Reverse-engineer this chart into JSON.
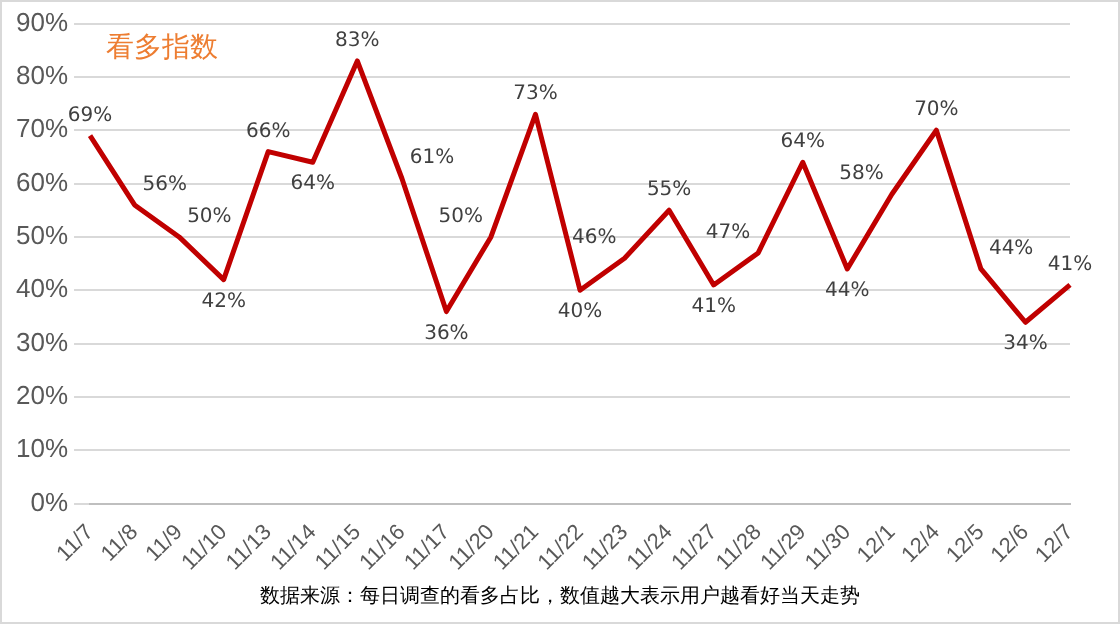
{
  "chart_data": {
    "type": "line",
    "title": "看多指数",
    "categories": [
      "11/7",
      "11/8",
      "11/9",
      "11/10",
      "11/13",
      "11/14",
      "11/15",
      "11/16",
      "11/17",
      "11/20",
      "11/21",
      "11/22",
      "11/23",
      "11/24",
      "11/27",
      "11/28",
      "11/29",
      "11/30",
      "12/1",
      "12/4",
      "12/5",
      "12/6",
      "12/7"
    ],
    "series": [
      {
        "color": "#c00000",
        "values": [
          69,
          56,
          50,
          42,
          66,
          64,
          83,
          61,
          36,
          50,
          73,
          40,
          46,
          55,
          41,
          47,
          64,
          44,
          58,
          70,
          44,
          34,
          41
        ],
        "value_labels": [
          "69%",
          "56%",
          "50%",
          "42%",
          "66%",
          "64%",
          "83%",
          "61%",
          "36%",
          "50%",
          "73%",
          "40%",
          "46%",
          "55%",
          "41%",
          "47%",
          "64%",
          "44%",
          "58%",
          "70%",
          "44%",
          "34%",
          "41%"
        ]
      }
    ],
    "ylim": [
      0,
      90
    ],
    "yticks": [
      {
        "value": 0,
        "label": "0%"
      },
      {
        "value": 10,
        "label": "10%"
      },
      {
        "value": 20,
        "label": "20%"
      },
      {
        "value": 30,
        "label": "30%"
      },
      {
        "value": 40,
        "label": "40%"
      },
      {
        "value": 50,
        "label": "50%"
      },
      {
        "value": 60,
        "label": "60%"
      },
      {
        "value": 70,
        "label": "70%"
      },
      {
        "value": 80,
        "label": "80%"
      },
      {
        "value": 90,
        "label": "90%"
      }
    ],
    "grid": "y",
    "legend": false,
    "marker": "none",
    "line_style": "solid",
    "annotations": [
      "数据来源：每日调查的看多占比，数值越大表示用户越看好当天走势"
    ]
  }
}
